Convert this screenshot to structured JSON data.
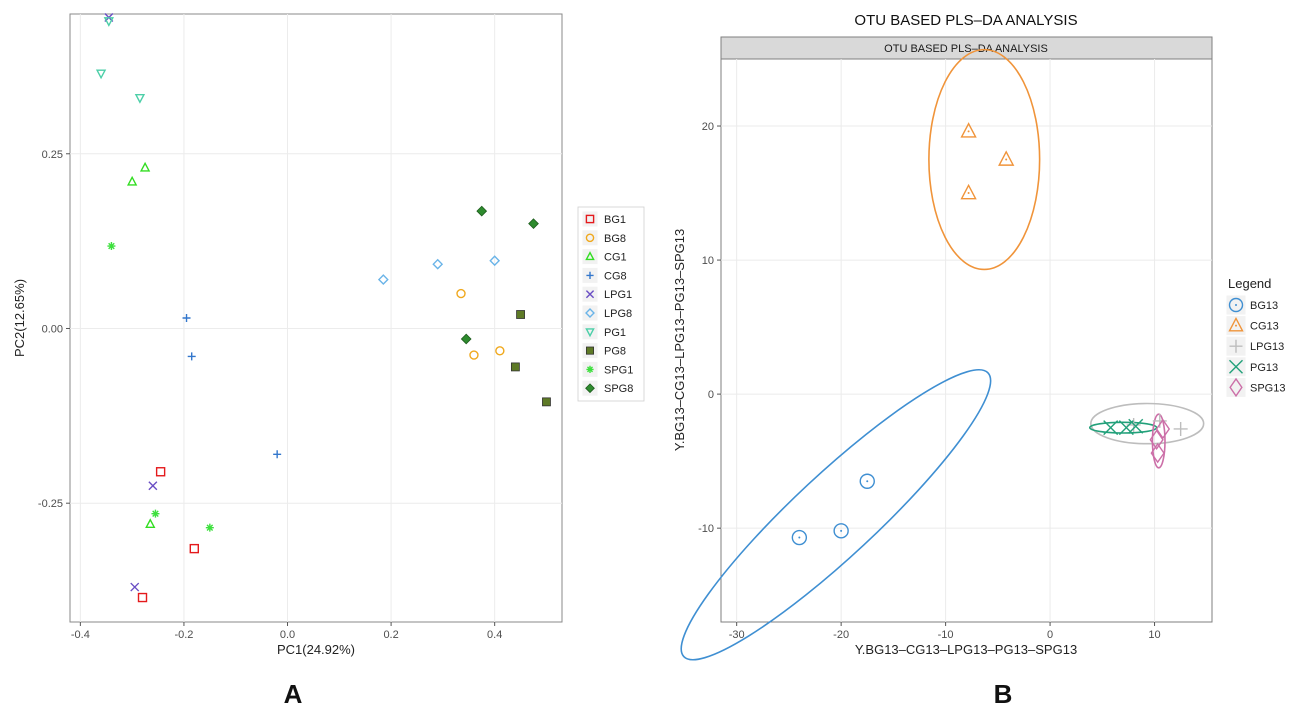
{
  "chart_data": [
    {
      "type": "scatter",
      "panel_label": "A",
      "xlabel": "PC1(24.92%)",
      "ylabel": "PC2(12.65%)",
      "xlim": [
        -0.42,
        0.53
      ],
      "ylim": [
        -0.42,
        0.45
      ],
      "x_ticks": [
        -0.4,
        -0.2,
        0.0,
        0.2,
        0.4
      ],
      "x_tick_labels": [
        "-0.4",
        "-0.2",
        "0.0",
        "0.2",
        "0.4"
      ],
      "y_ticks": [
        -0.25,
        0.0,
        0.25
      ],
      "y_tick_labels": [
        "-0.25",
        "0.00",
        "0.25"
      ],
      "grid": true,
      "legend_position": "right",
      "series": [
        {
          "name": "BG1",
          "color": "#e41a1c",
          "marker": "square-open",
          "points": [
            [
              -0.245,
              -0.205
            ],
            [
              -0.18,
              -0.315
            ],
            [
              -0.28,
              -0.385
            ]
          ]
        },
        {
          "name": "BG8",
          "color": "#f0a81c",
          "marker": "circle-open",
          "points": [
            [
              0.335,
              0.05
            ],
            [
              0.36,
              -0.038
            ],
            [
              0.41,
              -0.032
            ]
          ]
        },
        {
          "name": "CG1",
          "color": "#33dd22",
          "marker": "triangle-up-open",
          "points": [
            [
              -0.275,
              0.23
            ],
            [
              -0.3,
              0.21
            ],
            [
              -0.265,
              -0.28
            ]
          ]
        },
        {
          "name": "CG8",
          "color": "#3377cc",
          "marker": "plus",
          "points": [
            [
              -0.195,
              0.015
            ],
            [
              -0.185,
              -0.04
            ],
            [
              -0.02,
              -0.18
            ]
          ]
        },
        {
          "name": "LPG1",
          "color": "#6a4ec4",
          "marker": "x",
          "points": [
            [
              -0.345,
              0.445
            ],
            [
              -0.26,
              -0.225
            ],
            [
              -0.295,
              -0.37
            ]
          ]
        },
        {
          "name": "LPG8",
          "color": "#6ab4e8",
          "marker": "diamond-open",
          "points": [
            [
              0.185,
              0.07
            ],
            [
              0.29,
              0.092
            ],
            [
              0.4,
              0.097
            ]
          ]
        },
        {
          "name": "PG1",
          "color": "#4ccfa8",
          "marker": "triangle-down-open",
          "points": [
            [
              -0.345,
              0.44
            ],
            [
              -0.36,
              0.365
            ],
            [
              -0.285,
              0.33
            ]
          ]
        },
        {
          "name": "PG8",
          "color": "#5e7a26",
          "marker": "square-filled",
          "points": [
            [
              0.45,
              0.02
            ],
            [
              0.44,
              -0.055
            ],
            [
              0.5,
              -0.105
            ]
          ]
        },
        {
          "name": "SPG1",
          "color": "#3ee03e",
          "marker": "asterisk",
          "points": [
            [
              -0.34,
              0.118
            ],
            [
              -0.255,
              -0.265
            ],
            [
              -0.15,
              -0.285
            ]
          ]
        },
        {
          "name": "SPG8",
          "color": "#2e8b2e",
          "marker": "diamond-filled",
          "points": [
            [
              0.375,
              0.168
            ],
            [
              0.475,
              0.15
            ],
            [
              0.345,
              -0.015
            ]
          ]
        }
      ]
    },
    {
      "type": "scatter",
      "panel_label": "B",
      "title": "OTU BASED PLS–DA ANALYSIS",
      "strip_label": "OTU BASED PLS–DA ANALYSIS",
      "xlabel": "Y.BG13–CG13–LPG13–PG13–SPG13",
      "ylabel": "Y.BG13–CG13–LPG13–PG13–SPG13",
      "xlim": [
        -31.5,
        15.5
      ],
      "ylim": [
        -17,
        25
      ],
      "x_ticks": [
        -30,
        -20,
        -10,
        0,
        10
      ],
      "x_tick_labels": [
        "-30",
        "-20",
        "-10",
        "0",
        "10"
      ],
      "y_ticks": [
        -10,
        0,
        10,
        20
      ],
      "y_tick_labels": [
        "-10",
        "0",
        "10",
        "20"
      ],
      "grid": true,
      "legend_title": "Legend",
      "legend_position": "right",
      "series": [
        {
          "name": "BG13",
          "color": "#3f8fd2",
          "marker": "circle",
          "points": [
            [
              -17.5,
              -6.5
            ],
            [
              -24,
              -10.7
            ],
            [
              -20,
              -10.2
            ]
          ],
          "ellipse": {
            "cx": -20.5,
            "cy": -9.0,
            "rx": 18.0,
            "ry": 3.3,
            "angle_deg": 36
          }
        },
        {
          "name": "CG13",
          "color": "#f0943a",
          "marker": "triangle",
          "points": [
            [
              -7.8,
              19.6
            ],
            [
              -4.2,
              17.5
            ],
            [
              -7.8,
              15.0
            ]
          ],
          "ellipse": {
            "cx": -6.3,
            "cy": 17.5,
            "rx": 5.3,
            "ry": 8.2,
            "angle_deg": 0
          }
        },
        {
          "name": "LPG13",
          "color": "#bdbdbd",
          "marker": "plus",
          "points": [
            [
              8.0,
              -2.3
            ],
            [
              10.5,
              -2.0
            ],
            [
              12.5,
              -2.6
            ]
          ],
          "ellipse": {
            "cx": 9.3,
            "cy": -2.2,
            "rx": 5.4,
            "ry": 1.5,
            "angle_deg": 0
          }
        },
        {
          "name": "PG13",
          "color": "#22a07a",
          "marker": "x",
          "points": [
            [
              5.8,
              -2.5
            ],
            [
              7.3,
              -2.5
            ],
            [
              8.2,
              -2.4
            ]
          ],
          "ellipse": {
            "cx": 7.0,
            "cy": -2.5,
            "rx": 3.2,
            "ry": 0.4,
            "angle_deg": 0
          }
        },
        {
          "name": "SPG13",
          "color": "#cc6fa8",
          "marker": "diamond",
          "points": [
            [
              10.2,
              -3.4
            ],
            [
              10.8,
              -2.6
            ],
            [
              10.3,
              -4.4
            ]
          ],
          "ellipse": {
            "cx": 10.4,
            "cy": -3.5,
            "rx": 0.6,
            "ry": 2.0,
            "angle_deg": 0
          }
        }
      ]
    }
  ]
}
